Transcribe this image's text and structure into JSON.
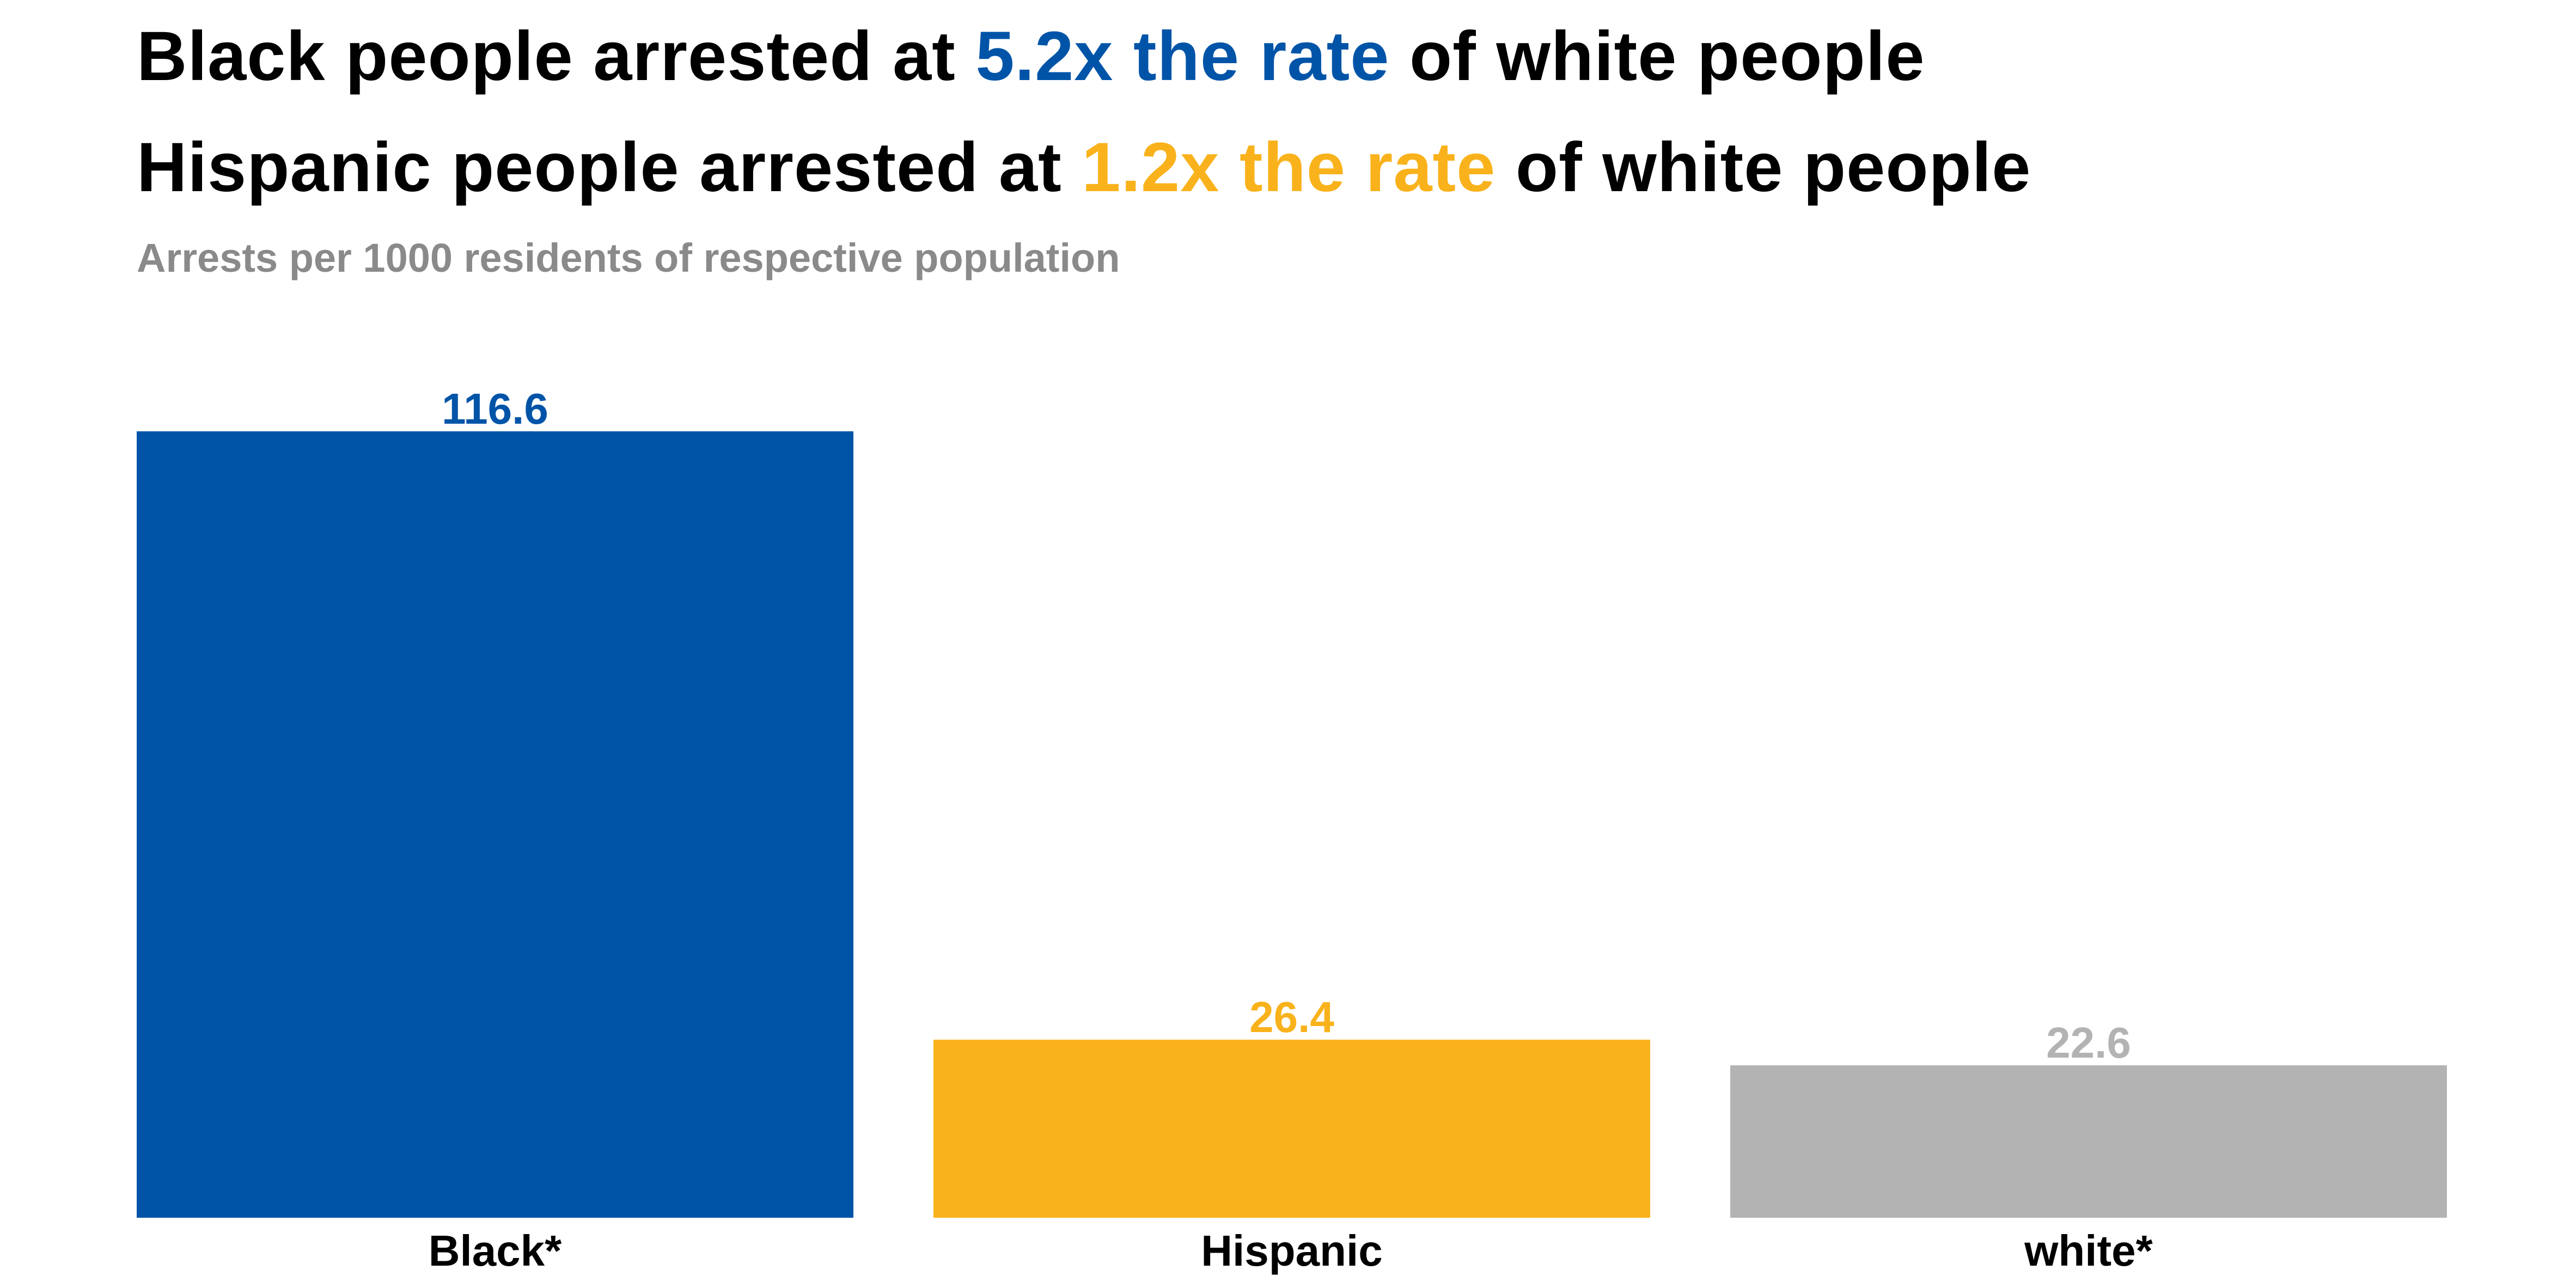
{
  "title": {
    "line1": {
      "before": "Black people arrested at ",
      "highlight": "5.2x the rate",
      "after": " of white people",
      "highlight_color": "#0054a8"
    },
    "line2": {
      "before": "Hispanic people arrested at ",
      "highlight": "1.2x the rate",
      "after": " of white people",
      "highlight_color": "#f9b21b"
    }
  },
  "subtitle": "Arrests per 1000 residents of respective population",
  "chart_data": {
    "type": "bar",
    "title": "",
    "xlabel": "",
    "ylabel": "",
    "categories": [
      "Black*",
      "Hispanic",
      "white*"
    ],
    "values": [
      116.6,
      26.4,
      22.6
    ],
    "value_labels": [
      "116.6",
      "26.4",
      "22.6"
    ],
    "colors": [
      "#0054a8",
      "#f9b21b",
      "#b3b3b3"
    ],
    "ylim": [
      0,
      116.6
    ],
    "grid": false,
    "legend": "none"
  }
}
